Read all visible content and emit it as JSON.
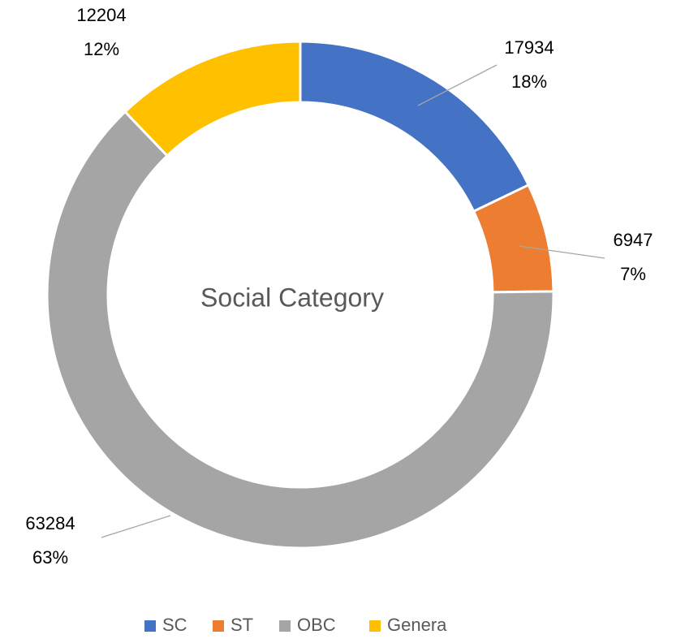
{
  "chart_data": {
    "type": "donut",
    "title": "Social Category",
    "categories": [
      "SC",
      "ST",
      "OBC",
      "Genera"
    ],
    "values": [
      17934,
      6947,
      63284,
      12204
    ],
    "percent_labels": [
      "18%",
      "7%",
      "63%",
      "12%"
    ],
    "colors": [
      "#4472c4",
      "#ed7d31",
      "#a5a5a5",
      "#ffc000"
    ],
    "legend": "bottom"
  }
}
